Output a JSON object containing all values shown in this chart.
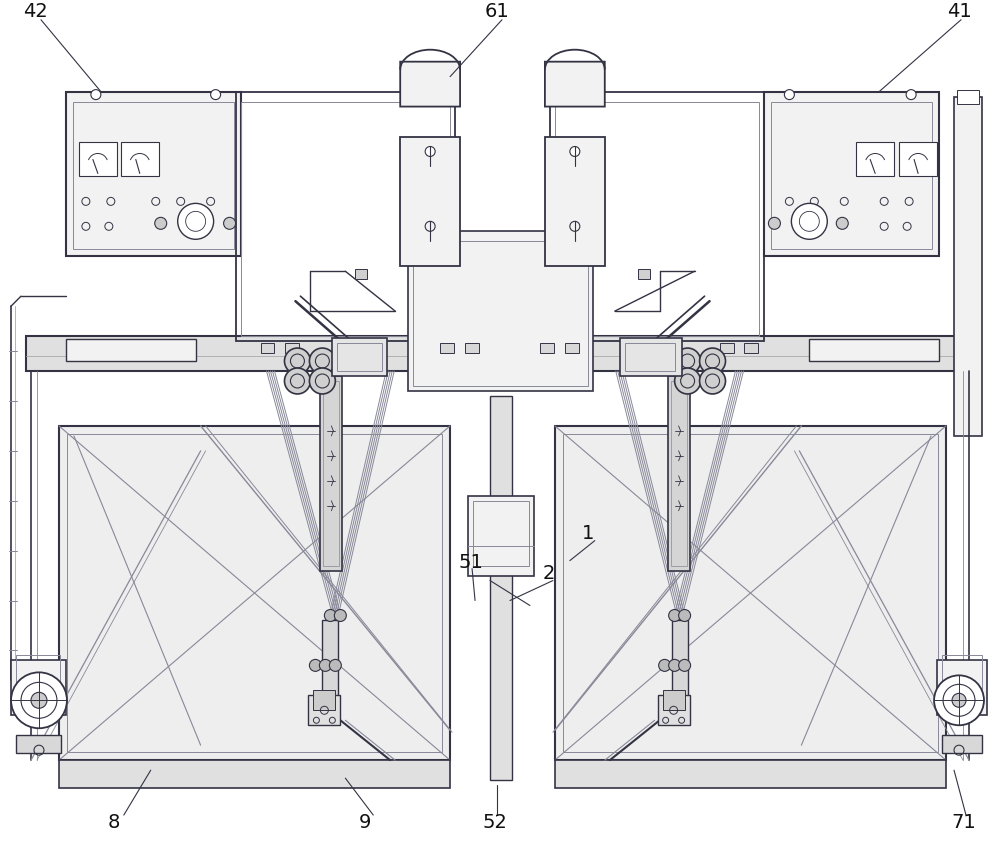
{
  "bg_color": "#ffffff",
  "lc_main": "#555566",
  "lc_dark": "#333344",
  "lc_med": "#888899",
  "lc_light": "#aaaaaa",
  "lc_purple": "#9090b0",
  "fc_box": "#f2f2f2",
  "fc_frame": "#eeeeee",
  "fc_white": "#ffffff",
  "fig_width": 10.0,
  "fig_height": 8.43
}
